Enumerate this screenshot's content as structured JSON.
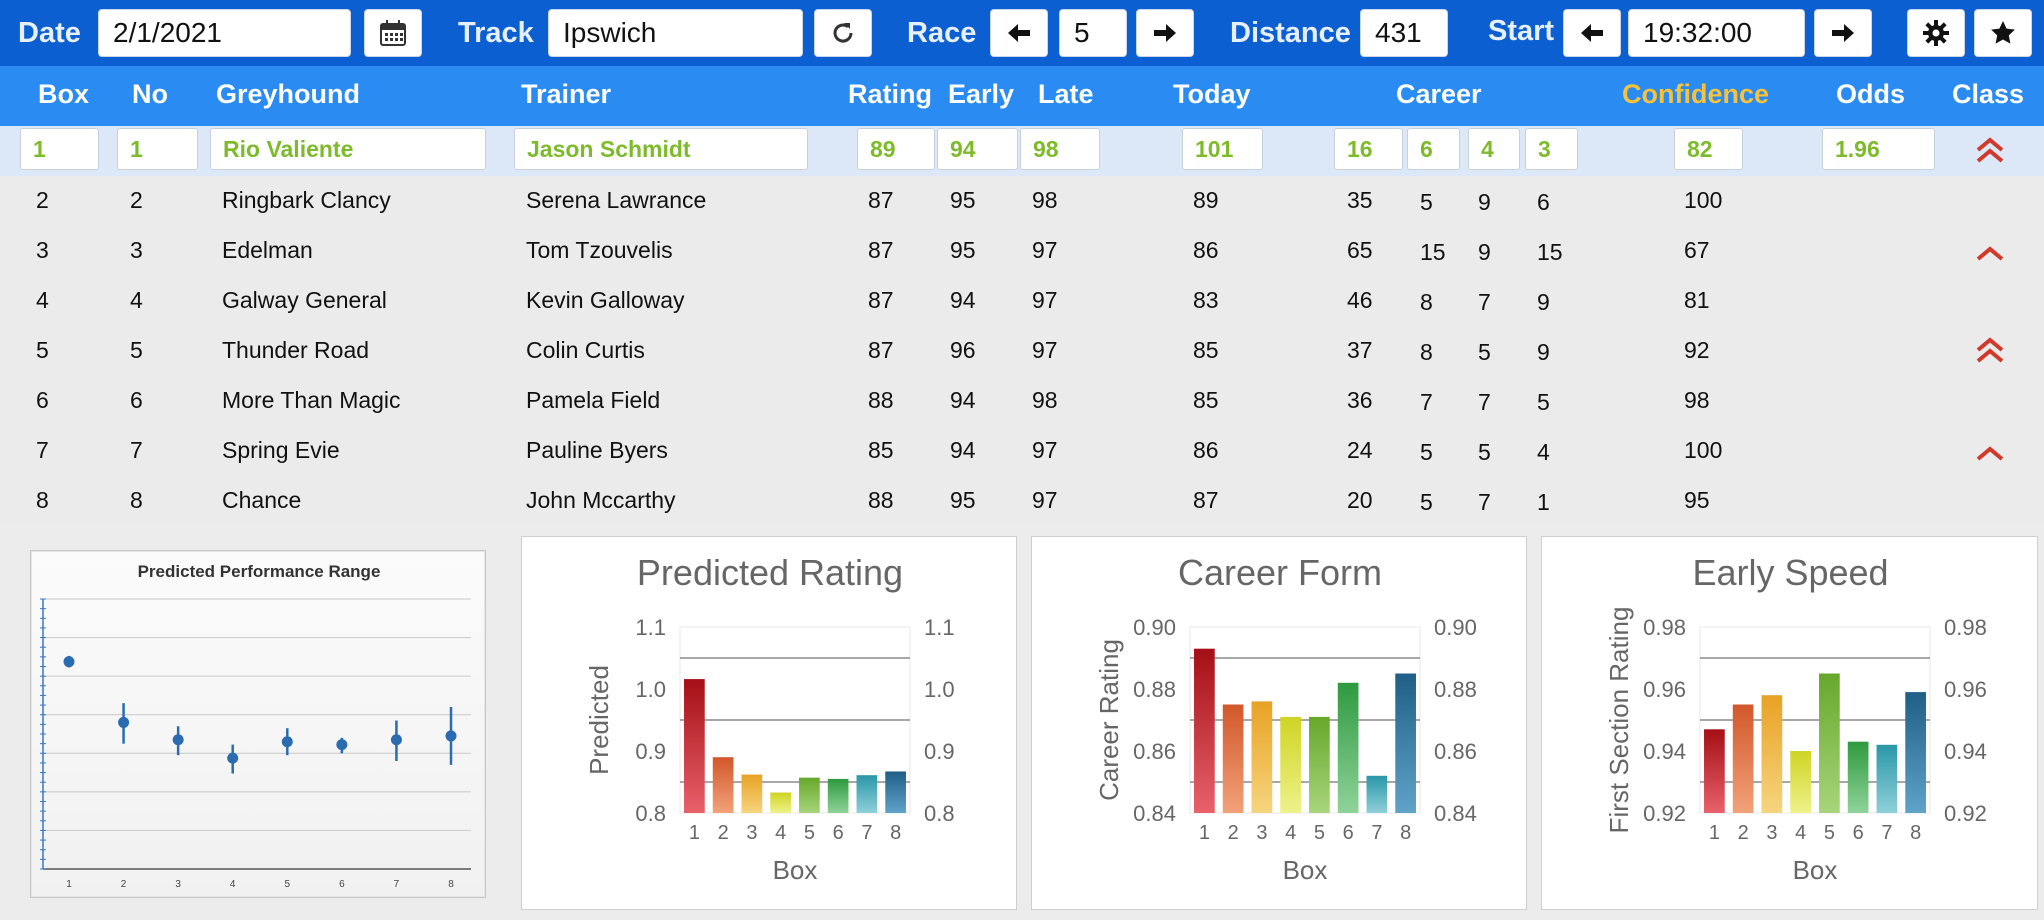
{
  "toolbar": {
    "date_label": "Date",
    "date_value": "2/1/2021",
    "track_label": "Track",
    "track_value": "Ipswich",
    "race_label": "Race",
    "race_value": "5",
    "distance_label": "Distance",
    "distance_value": "431",
    "start_label": "Start",
    "start_value": "19:32:00",
    "icons": [
      "calendar-icon",
      "refresh-icon",
      "arrow-left-icon",
      "arrow-right-icon",
      "gear-icon",
      "star-icon"
    ]
  },
  "columns": {
    "box": "Box",
    "no": "No",
    "greyhound": "Greyhound",
    "trainer": "Trainer",
    "rating": "Rating",
    "early": "Early",
    "late": "Late",
    "today": "Today",
    "career": "Career",
    "confidence": "Confidence",
    "odds": "Odds",
    "class": "Class"
  },
  "colors": {
    "toolbar": "#0c5fd0",
    "header": "#2a8bf2",
    "confidence_header": "#f7c13a",
    "selected_text": "#7dbb2b",
    "class_icon": "#d03a2b"
  },
  "rows": [
    {
      "box": "1",
      "no": "1",
      "greyhound": "Rio Valiente",
      "trainer": "Jason Schmidt",
      "rating": "89",
      "early": "94",
      "late": "98",
      "today": "101",
      "career": [
        "16",
        "6",
        "4",
        "3"
      ],
      "confidence": "82",
      "odds": "1.96",
      "class": "double-chevron-up-icon"
    },
    {
      "box": "2",
      "no": "2",
      "greyhound": "Ringbark Clancy",
      "trainer": "Serena Lawrance",
      "rating": "87",
      "early": "95",
      "late": "98",
      "today": "89",
      "career": [
        "35",
        "5",
        "9",
        "6"
      ],
      "confidence": "100",
      "odds": "",
      "class": ""
    },
    {
      "box": "3",
      "no": "3",
      "greyhound": "Edelman",
      "trainer": "Tom Tzouvelis",
      "rating": "87",
      "early": "95",
      "late": "97",
      "today": "86",
      "career": [
        "65",
        "15",
        "9",
        "15"
      ],
      "confidence": "67",
      "odds": "",
      "class": "chevron-up-icon"
    },
    {
      "box": "4",
      "no": "4",
      "greyhound": "Galway General",
      "trainer": "Kevin Galloway",
      "rating": "87",
      "early": "94",
      "late": "97",
      "today": "83",
      "career": [
        "46",
        "8",
        "7",
        "9"
      ],
      "confidence": "81",
      "odds": "",
      "class": ""
    },
    {
      "box": "5",
      "no": "5",
      "greyhound": "Thunder Road",
      "trainer": "Colin Curtis",
      "rating": "87",
      "early": "96",
      "late": "97",
      "today": "85",
      "career": [
        "37",
        "8",
        "5",
        "9"
      ],
      "confidence": "92",
      "odds": "",
      "class": "double-chevron-up-icon"
    },
    {
      "box": "6",
      "no": "6",
      "greyhound": "More Than Magic",
      "trainer": "Pamela Field",
      "rating": "88",
      "early": "94",
      "late": "98",
      "today": "85",
      "career": [
        "36",
        "7",
        "7",
        "5"
      ],
      "confidence": "98",
      "odds": "",
      "class": ""
    },
    {
      "box": "7",
      "no": "7",
      "greyhound": "Spring Evie",
      "trainer": "Pauline Byers",
      "rating": "85",
      "early": "94",
      "late": "97",
      "today": "86",
      "career": [
        "24",
        "5",
        "5",
        "4"
      ],
      "confidence": "100",
      "odds": "",
      "class": "chevron-up-icon"
    },
    {
      "box": "8",
      "no": "8",
      "greyhound": "Chance",
      "trainer": "John Mccarthy",
      "rating": "88",
      "early": "95",
      "late": "97",
      "today": "87",
      "career": [
        "20",
        "5",
        "7",
        "1"
      ],
      "confidence": "95",
      "odds": "",
      "class": ""
    }
  ],
  "chart_data": [
    {
      "type": "scatter",
      "title": "Predicted Performance Range",
      "x": [
        1,
        2,
        3,
        4,
        5,
        6,
        7,
        8
      ],
      "categories": [
        "1",
        "2",
        "3",
        "4",
        "5",
        "6",
        "7",
        "8"
      ],
      "values": [
        0.915,
        0.852,
        0.834,
        0.815,
        0.832,
        0.829,
        0.834,
        0.838
      ],
      "error_low": [
        0.006,
        0.022,
        0.016,
        0.016,
        0.014,
        0.009,
        0.022,
        0.03
      ],
      "error_high": [
        0.006,
        0.02,
        0.014,
        0.014,
        0.014,
        0.007,
        0.02,
        0.03
      ],
      "ylim": [
        0.7,
        0.98
      ],
      "grid": true
    },
    {
      "type": "bar",
      "title": "Predicted Rating",
      "xlabel": "Box",
      "ylabel": "Predicted",
      "categories": [
        "1",
        "2",
        "3",
        "4",
        "5",
        "6",
        "7",
        "8"
      ],
      "values": [
        1.016,
        0.89,
        0.862,
        0.833,
        0.857,
        0.855,
        0.861,
        0.867
      ],
      "ylim": [
        0.8,
        1.1
      ],
      "yticks": [
        "0.8",
        "0.9",
        "1.0",
        "1.1"
      ],
      "secondary_yticks": [
        "0.8",
        "0.9",
        "1.0",
        "1.1"
      ],
      "grid": true
    },
    {
      "type": "bar",
      "title": "Career Form",
      "xlabel": "Box",
      "ylabel": "Career Rating",
      "categories": [
        "1",
        "2",
        "3",
        "4",
        "5",
        "6",
        "7",
        "8"
      ],
      "values": [
        0.893,
        0.875,
        0.876,
        0.871,
        0.871,
        0.882,
        0.852,
        0.885
      ],
      "ylim": [
        0.84,
        0.9
      ],
      "yticks": [
        "0.84",
        "0.86",
        "0.88",
        "0.90"
      ],
      "secondary_yticks": [
        "0.84",
        "0.86",
        "0.88",
        "0.90"
      ],
      "grid": true
    },
    {
      "type": "bar",
      "title": "Early Speed",
      "xlabel": "Box",
      "ylabel": "First Section Rating",
      "categories": [
        "1",
        "2",
        "3",
        "4",
        "5",
        "6",
        "7",
        "8"
      ],
      "values": [
        0.947,
        0.955,
        0.958,
        0.94,
        0.965,
        0.943,
        0.942,
        0.959
      ],
      "ylim": [
        0.92,
        0.98
      ],
      "yticks": [
        "0.92",
        "0.94",
        "0.96",
        "0.98"
      ],
      "secondary_yticks": [
        "0.92",
        "0.94",
        "0.96",
        "0.98"
      ],
      "grid": true
    }
  ]
}
